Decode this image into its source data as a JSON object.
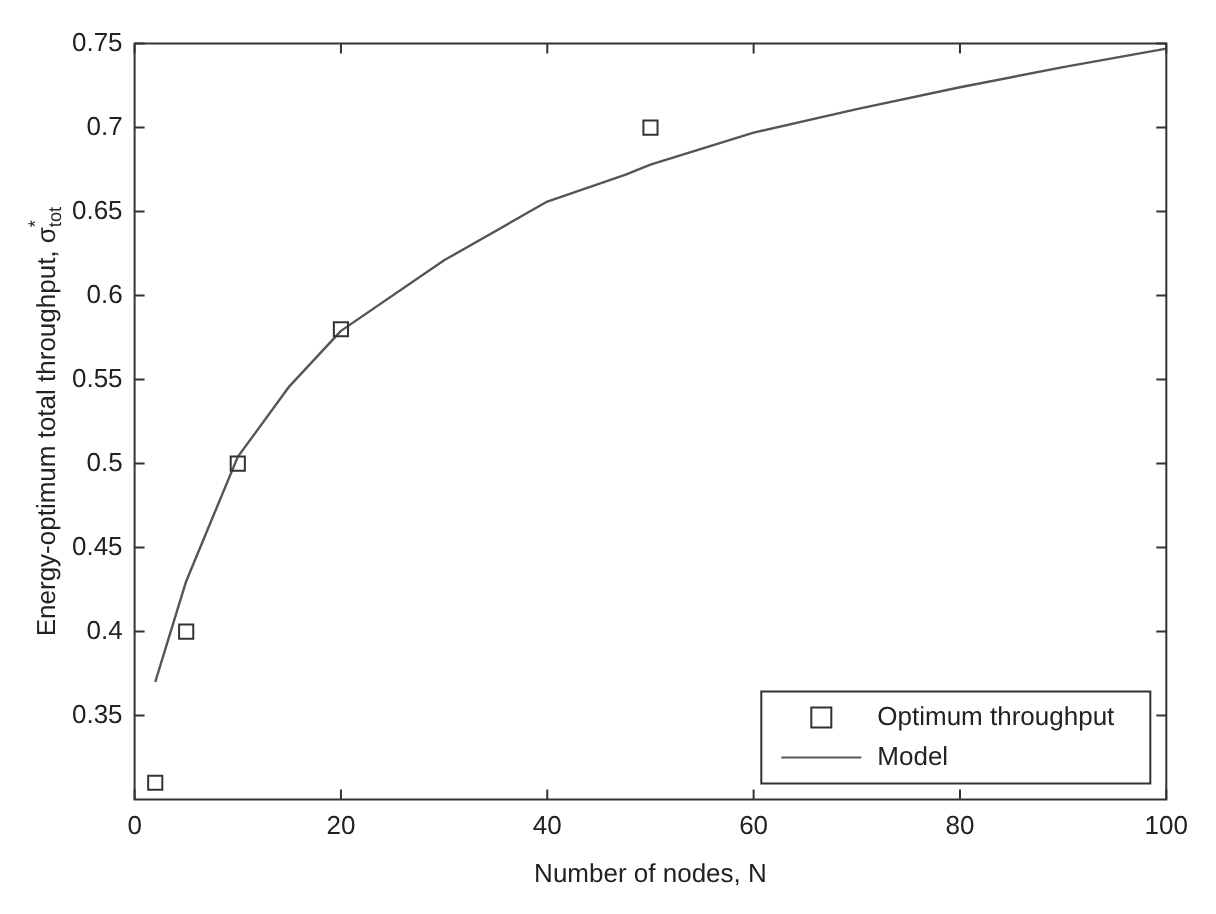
{
  "chart_data": {
    "type": "scatter",
    "xlabel": "Number of nodes, N",
    "ylabel": "Energy-optimum total throughput, σ$^{*}$$_{tot}$",
    "xlim": [
      0,
      100
    ],
    "xticks": [
      0,
      20,
      40,
      60,
      80,
      100
    ],
    "ylim": [
      0.3,
      0.75
    ],
    "yticks": [
      0.35,
      0.4,
      0.45,
      0.5,
      0.55,
      0.6,
      0.65,
      0.7,
      0.75
    ],
    "legend": "bottom right",
    "grid": false,
    "series": [
      {
        "name": "Optimum throughput",
        "marker": "square",
        "color": "#333333",
        "x": [
          2,
          5,
          10,
          20,
          50
        ],
        "values": [
          0.31,
          0.4,
          0.5,
          0.58,
          0.7
        ]
      },
      {
        "name": "Model",
        "type": "line",
        "marker": "none",
        "line_style": "solid",
        "color": "#555555",
        "x": [
          2,
          3,
          5,
          10,
          15,
          20,
          30,
          40,
          47.6,
          50,
          60,
          70,
          80,
          90,
          100
        ],
        "values": [
          0.37,
          0.39,
          0.43,
          0.504,
          0.546,
          0.579,
          0.621,
          0.656,
          0.672,
          0.678,
          0.697,
          0.711,
          0.724,
          0.736,
          0.747
        ]
      }
    ]
  }
}
